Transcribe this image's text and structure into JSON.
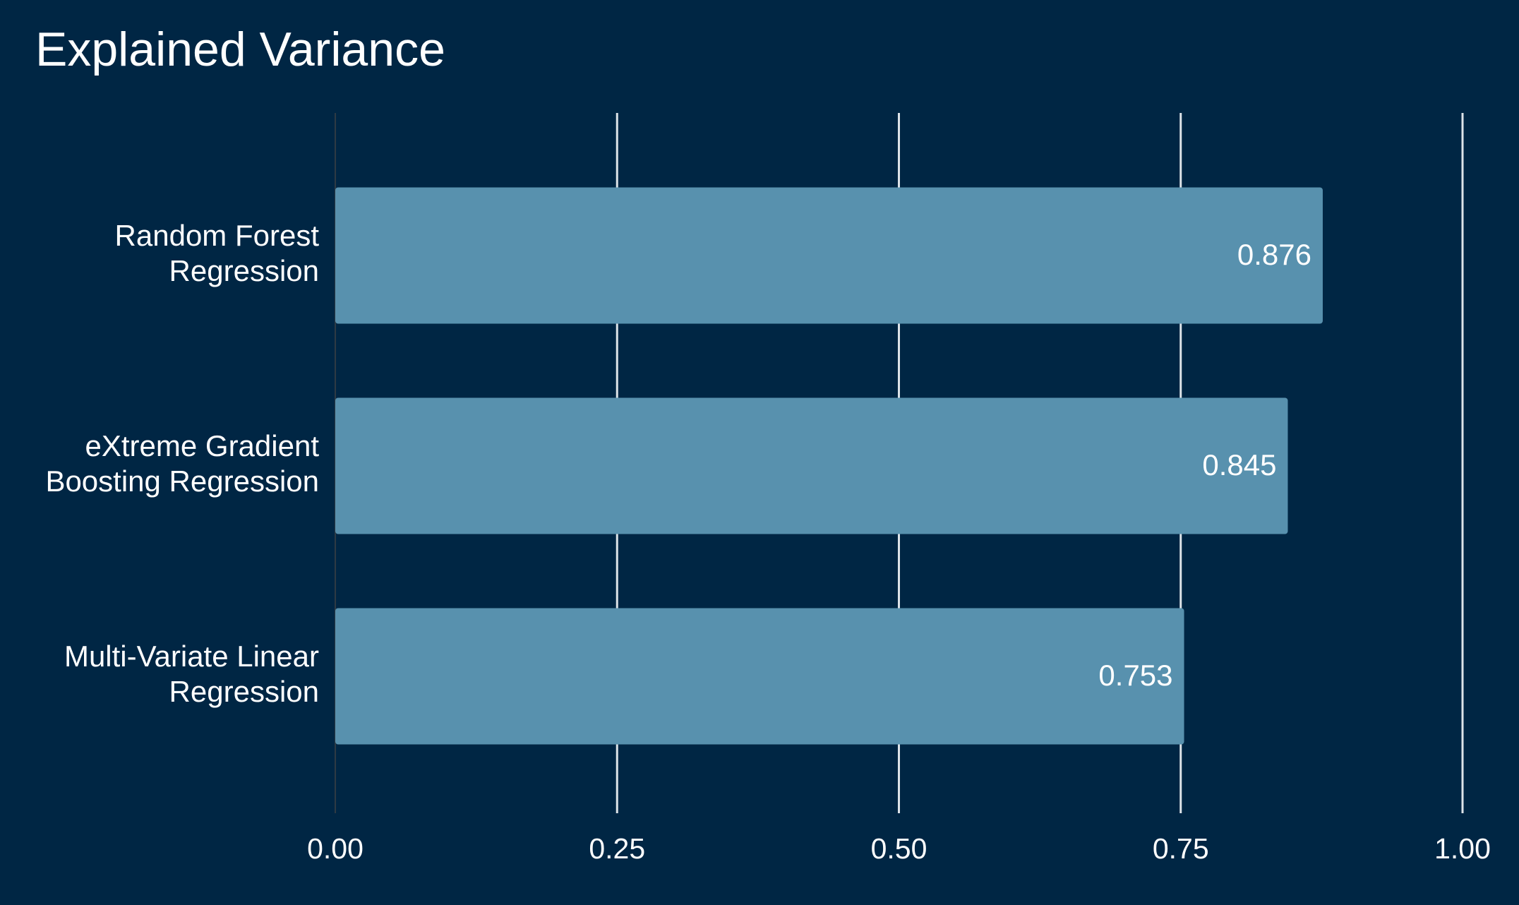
{
  "chart_data": {
    "type": "bar",
    "orientation": "horizontal",
    "title": "Explained Variance",
    "xlabel": "",
    "ylabel": "",
    "categories": [
      [
        "Random Forest",
        "Regression"
      ],
      [
        "eXtreme Gradient",
        "Boosting Regression"
      ],
      [
        "Multi-Variate Linear",
        "Regression"
      ]
    ],
    "values": [
      0.876,
      0.845,
      0.753
    ],
    "value_labels": [
      "0.876",
      "0.845",
      "0.753"
    ],
    "xlim": [
      0,
      1
    ],
    "xticks": [
      0,
      0.25,
      0.5,
      0.75,
      1
    ],
    "xtick_labels": [
      "0.00",
      "0.25",
      "0.50",
      "0.75",
      "1.00"
    ],
    "grid": "vertical",
    "legend": "none",
    "colors": {
      "background": "#002644",
      "bar": "#5891AE",
      "grid": "#DDE3E8",
      "zero_line": "#2E3A44",
      "text": "#FFFFFF"
    }
  }
}
